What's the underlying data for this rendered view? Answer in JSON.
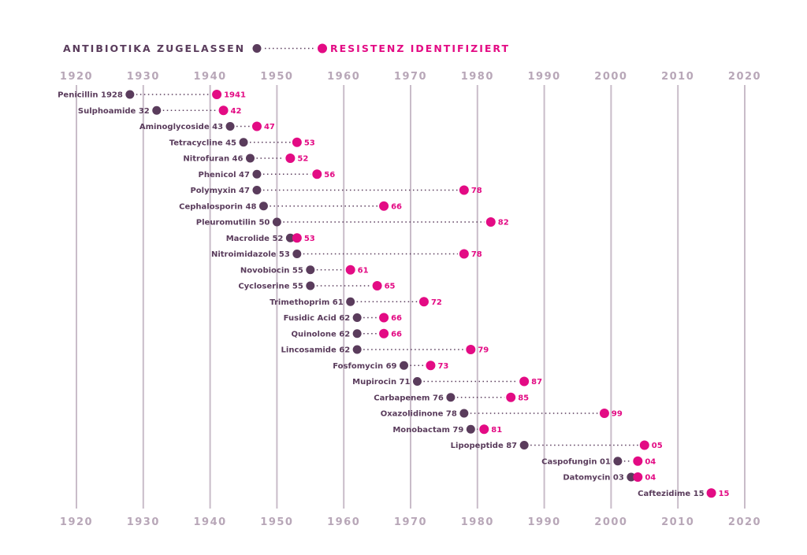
{
  "chart_data": {
    "type": "dumbbell",
    "xlim": [
      1920,
      2020
    ],
    "x_ticks": [
      "1920",
      "1930",
      "1940",
      "1950",
      "1960",
      "1970",
      "1980",
      "1990",
      "2000",
      "2010",
      "2020"
    ],
    "legend": {
      "approved_label": "ANTIBIOTIKA ZUGELASSEN",
      "resistance_label": "RESISTENZ IDENTIFIZIERT",
      "placement": "top-left"
    },
    "colors": {
      "approved": "#5a3c5c",
      "resistance": "#e30b84",
      "grid": "#c9bcc9",
      "axis_text": "#b8a7b8"
    },
    "rows": [
      {
        "label": "Penicillin 1928",
        "approved": 1928,
        "resistance": 1941,
        "resistance_label": "1941"
      },
      {
        "label": "Sulphoamide 32",
        "approved": 1932,
        "resistance": 1942,
        "resistance_label": "42"
      },
      {
        "label": "Aminoglycoside 43",
        "approved": 1943,
        "resistance": 1947,
        "resistance_label": "47"
      },
      {
        "label": "Tetracycline 45",
        "approved": 1945,
        "resistance": 1953,
        "resistance_label": "53"
      },
      {
        "label": "Nitrofuran 46",
        "approved": 1946,
        "resistance": 1952,
        "resistance_label": "52"
      },
      {
        "label": "Phenicol 47",
        "approved": 1947,
        "resistance": 1956,
        "resistance_label": "56"
      },
      {
        "label": "Polymyxin 47",
        "approved": 1947,
        "resistance": 1978,
        "resistance_label": "78"
      },
      {
        "label": "Cephalosporin 48",
        "approved": 1948,
        "resistance": 1966,
        "resistance_label": "66"
      },
      {
        "label": "Pleuromutilin 50",
        "approved": 1950,
        "resistance": 1982,
        "resistance_label": "82"
      },
      {
        "label": "Macrolide 52",
        "approved": 1952,
        "resistance": 1953,
        "resistance_label": "53"
      },
      {
        "label": "Nitroimidazole 53",
        "approved": 1953,
        "resistance": 1978,
        "resistance_label": "78"
      },
      {
        "label": "Novobiocin 55",
        "approved": 1955,
        "resistance": 1961,
        "resistance_label": "61"
      },
      {
        "label": "Cycloserine 55",
        "approved": 1955,
        "resistance": 1965,
        "resistance_label": "65"
      },
      {
        "label": "Trimethoprim 61",
        "approved": 1961,
        "resistance": 1972,
        "resistance_label": "72"
      },
      {
        "label": "Fusidic Acid 62",
        "approved": 1962,
        "resistance": 1966,
        "resistance_label": "66"
      },
      {
        "label": "Quinolone 62",
        "approved": 1962,
        "resistance": 1966,
        "resistance_label": "66"
      },
      {
        "label": "Lincosamide 62",
        "approved": 1962,
        "resistance": 1979,
        "resistance_label": "79"
      },
      {
        "label": "Fosfomycin 69",
        "approved": 1969,
        "resistance": 1973,
        "resistance_label": "73"
      },
      {
        "label": "Mupirocin 71",
        "approved": 1971,
        "resistance": 1987,
        "resistance_label": "87"
      },
      {
        "label": "Carbapenem 76",
        "approved": 1976,
        "resistance": 1985,
        "resistance_label": "85"
      },
      {
        "label": "Oxazolidinone 78",
        "approved": 1978,
        "resistance": 1999,
        "resistance_label": "99"
      },
      {
        "label": "Monobactam 79",
        "approved": 1979,
        "resistance": 1981,
        "resistance_label": "81"
      },
      {
        "label": "Lipopeptide 87",
        "approved": 1987,
        "resistance": 2005,
        "resistance_label": "05"
      },
      {
        "label": "Caspofungin 01",
        "approved": 2001,
        "resistance": 2004,
        "resistance_label": "04"
      },
      {
        "label": "Datomycin 03",
        "approved": 2003,
        "resistance": 2004,
        "resistance_label": "04"
      },
      {
        "label": "Caftezidime 15",
        "approved": 2015,
        "resistance": 2015,
        "resistance_label": "15"
      }
    ]
  }
}
